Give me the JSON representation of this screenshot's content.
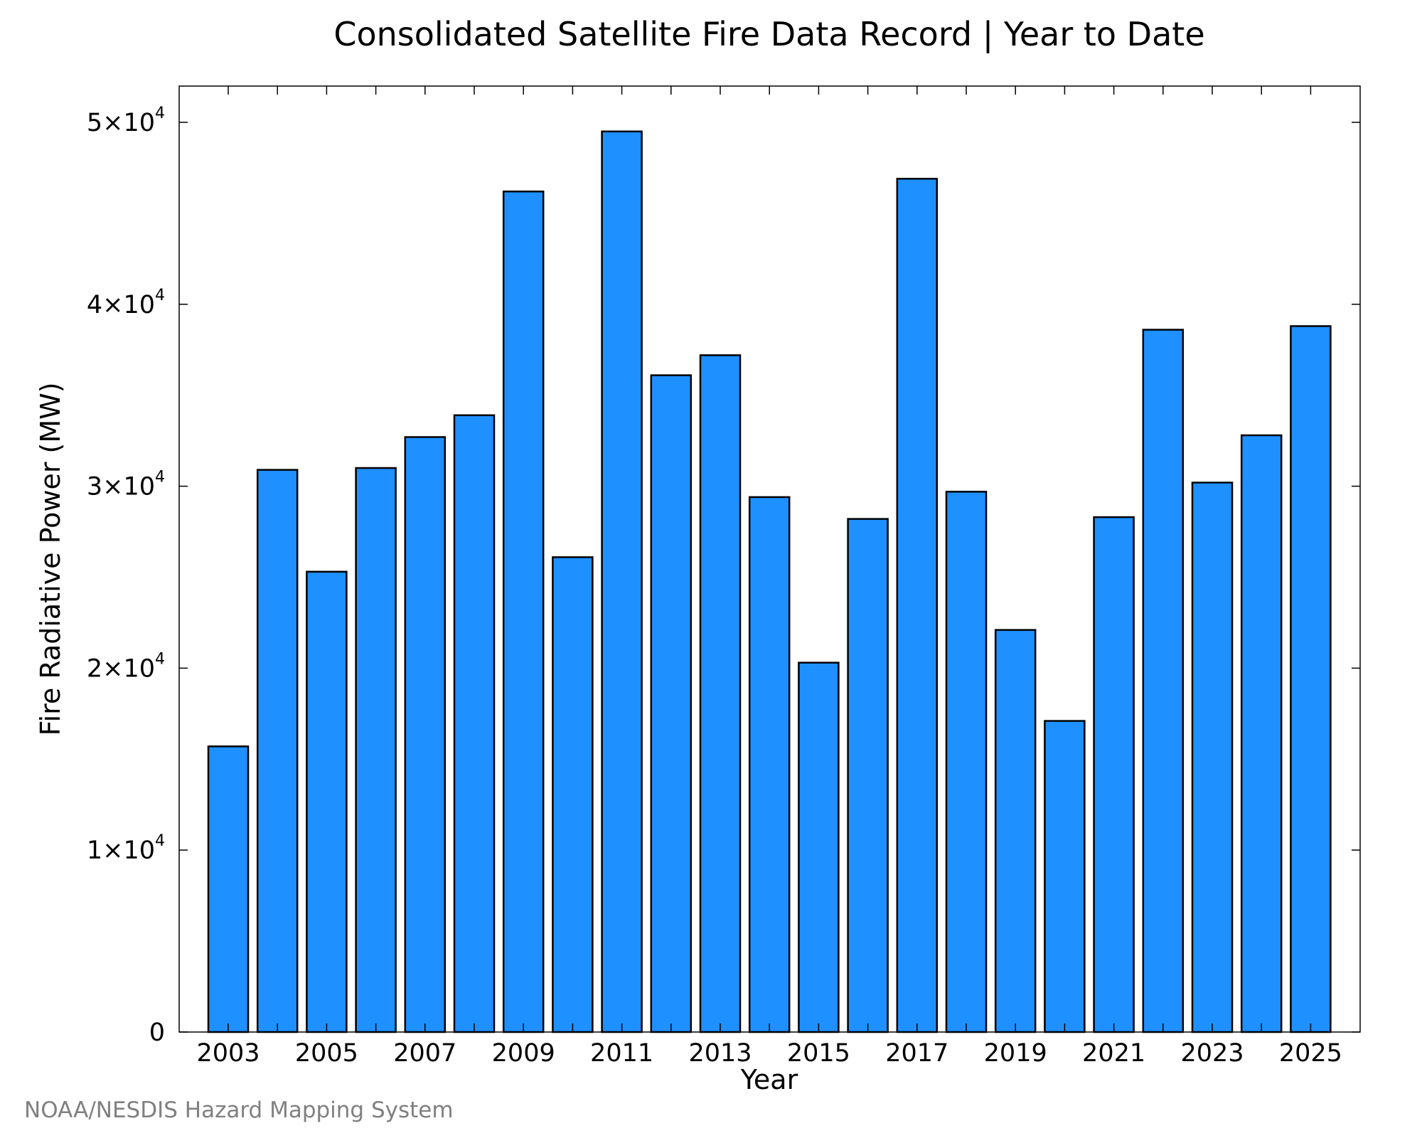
{
  "chart_data": {
    "type": "bar",
    "title": "Consolidated Satellite Fire Data Record | Year to Date",
    "xlabel": "Year",
    "ylabel": "Fire Radiative Power (MW)",
    "categories": [
      "2003",
      "2004",
      "2005",
      "2006",
      "2007",
      "2008",
      "2009",
      "2010",
      "2011",
      "2012",
      "2013",
      "2014",
      "2015",
      "2016",
      "2017",
      "2018",
      "2019",
      "2020",
      "2021",
      "2022",
      "2023",
      "2024",
      "2025"
    ],
    "values": [
      15700,
      30900,
      25300,
      31000,
      32700,
      33900,
      46200,
      26100,
      49500,
      36100,
      37200,
      29400,
      20300,
      28200,
      46900,
      29700,
      22100,
      17100,
      28300,
      38600,
      30200,
      32800,
      38800
    ],
    "ylim": [
      0,
      52000
    ],
    "x_tick_labels": [
      "2003",
      "2005",
      "2007",
      "2009",
      "2011",
      "2013",
      "2015",
      "2017",
      "2019",
      "2021",
      "2023",
      "2025"
    ],
    "y_ticks": [
      {
        "value": 0,
        "mantissa": "0",
        "exponent": ""
      },
      {
        "value": 10000,
        "mantissa": "1×10",
        "exponent": "4"
      },
      {
        "value": 20000,
        "mantissa": "2×10",
        "exponent": "4"
      },
      {
        "value": 30000,
        "mantissa": "3×10",
        "exponent": "4"
      },
      {
        "value": 40000,
        "mantissa": "4×10",
        "exponent": "4"
      },
      {
        "value": 50000,
        "mantissa": "5×10",
        "exponent": "4"
      }
    ],
    "bar_color": "#1e90ff",
    "grid": false,
    "legend": "none"
  },
  "footer": {
    "credit": "NOAA/NESDIS Hazard Mapping System"
  }
}
